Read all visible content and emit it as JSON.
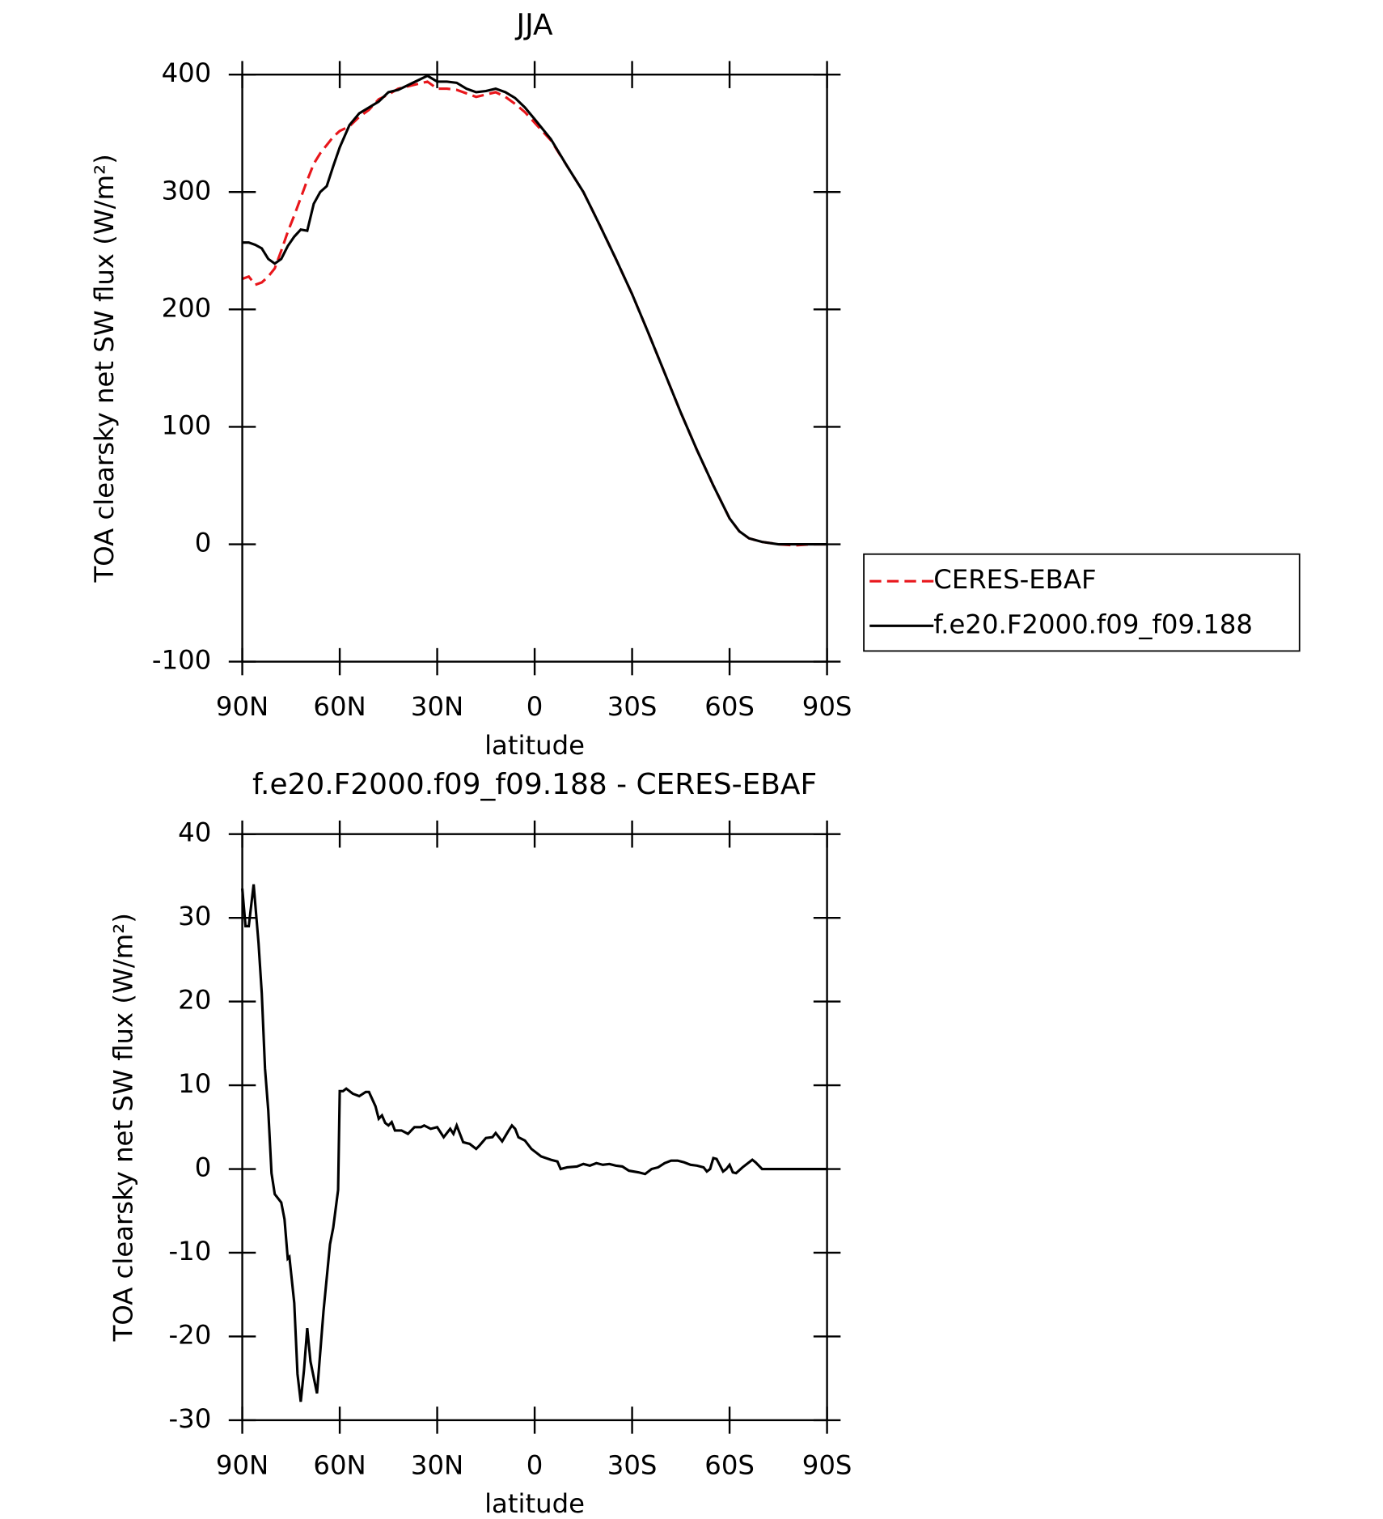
{
  "chart_data": [
    {
      "type": "line",
      "title": "JJA",
      "xlabel": "latitude",
      "ylabel": "TOA clearsky net SW flux (W/m²)",
      "x": [
        90,
        88,
        86,
        84,
        82,
        80,
        78,
        76,
        74,
        72,
        70,
        68,
        66,
        64,
        62,
        60,
        57,
        54,
        51,
        48,
        45,
        42,
        39,
        36,
        33,
        30,
        27,
        24,
        21,
        18,
        15,
        12,
        9,
        6,
        3,
        0,
        -5,
        -10,
        -15,
        -20,
        -25,
        -30,
        -35,
        -40,
        -45,
        -50,
        -55,
        -60,
        -63,
        -66,
        -70,
        -75,
        -80,
        -85,
        -90
      ],
      "series": [
        {
          "name": "CERES-EBAF",
          "color": "#e8161b",
          "dash": true,
          "values": [
            226,
            228,
            221,
            223,
            228,
            235,
            250,
            266,
            280,
            295,
            310,
            324,
            333,
            340,
            347,
            352,
            356,
            364,
            370,
            379,
            383,
            388,
            390,
            392,
            394,
            388,
            388,
            387,
            384,
            381,
            383,
            385,
            381,
            375,
            368,
            359,
            344,
            322,
            300,
            272,
            243,
            213,
            180,
            146,
            112,
            80,
            50,
            22,
            11,
            5,
            2,
            0,
            -1,
            0,
            0
          ]
        },
        {
          "name": "f.e20.F2000.f09_f09.188",
          "color": "#000000",
          "dash": false,
          "values": [
            257,
            257,
            255,
            252,
            243,
            239,
            243,
            254,
            262,
            268,
            267,
            290,
            300,
            305,
            322,
            338,
            357,
            367,
            372,
            377,
            385,
            387,
            391,
            395,
            399,
            394,
            394,
            393,
            388,
            385,
            386,
            388,
            385,
            380,
            372,
            362,
            345,
            322,
            300,
            272,
            243,
            213,
            180,
            146,
            112,
            80,
            50,
            22,
            11,
            5,
            2,
            0,
            0,
            0,
            0
          ]
        }
      ],
      "xlim": [
        90,
        -90
      ],
      "xticks": [
        {
          "value": 90,
          "label": "90N"
        },
        {
          "value": 60,
          "label": "60N"
        },
        {
          "value": 30,
          "label": "30N"
        },
        0,
        {
          "value": -30,
          "label": "30S"
        },
        {
          "value": -60,
          "label": "60S"
        },
        {
          "value": -90,
          "label": "90S"
        }
      ],
      "ylim": [
        -100,
        400
      ],
      "yticks": [
        -100,
        0,
        100,
        200,
        300,
        400
      ],
      "legend": "outside-right"
    },
    {
      "type": "line",
      "title": "f.e20.F2000.f09_f09.188 - CERES-EBAF",
      "xlabel": "latitude",
      "ylabel": "TOA clearsky net SW flux (W/m²)",
      "x": [
        90,
        89,
        88,
        86.5,
        85,
        84,
        83,
        82,
        81,
        80,
        78,
        77,
        76,
        75.5,
        74,
        73,
        72,
        71,
        70,
        69,
        67,
        65,
        63,
        62,
        60.5,
        60,
        59,
        58,
        56,
        54,
        52,
        51,
        49,
        48,
        47,
        46,
        45,
        44,
        43,
        41,
        39,
        37,
        35,
        34,
        32,
        30,
        28,
        26,
        25,
        24,
        22,
        20,
        18,
        17,
        15,
        13,
        12,
        10,
        8,
        7,
        6,
        5,
        3,
        1,
        -2,
        -5,
        -7,
        -8,
        -10,
        -13,
        -15,
        -17,
        -19,
        -21,
        -23,
        -25,
        -27,
        -29,
        -32,
        -34,
        -36,
        -38,
        -40,
        -42,
        -44,
        -46,
        -48,
        -50,
        -52,
        -53,
        -54,
        -55,
        -56,
        -58,
        -59,
        -60,
        -61,
        -62,
        -64,
        -67,
        -68,
        -70,
        -75,
        -80,
        -90
      ],
      "color": "#000000",
      "values": [
        33.5,
        29,
        29,
        34,
        27,
        21,
        12,
        7,
        -0.5,
        -3,
        -4,
        -6,
        -10.7,
        -10.5,
        -16,
        -24.5,
        -27.8,
        -24,
        -19,
        -23,
        -26.8,
        -17,
        -9,
        -7,
        -2.5,
        9.3,
        9.3,
        9.6,
        9,
        8.7,
        9.2,
        9.2,
        7.5,
        6,
        6.4,
        5.5,
        5.2,
        5.6,
        4.6,
        4.6,
        4.2,
        5,
        5,
        5.2,
        4.8,
        5,
        3.8,
        4.8,
        4.2,
        5.2,
        3.2,
        3,
        2.4,
        2.8,
        3.7,
        3.8,
        4.3,
        3.3,
        4.6,
        5.2,
        4.8,
        3.8,
        3.4,
        2.4,
        1.5,
        1.1,
        0.9,
        0,
        0.2,
        0.3,
        0.6,
        0.4,
        0.7,
        0.5,
        0.6,
        0.4,
        0.3,
        -0.2,
        -0.4,
        -0.6,
        0,
        0.2,
        0.7,
        1,
        1,
        0.8,
        0.5,
        0.4,
        0.2,
        -0.3,
        0,
        1.3,
        1.2,
        -0.3,
        0,
        0.5,
        -0.4,
        -0.5,
        0.2,
        1.1,
        0.8,
        0,
        0,
        0,
        0
      ],
      "xlim": [
        90,
        -90
      ],
      "xticks": [
        {
          "value": 90,
          "label": "90N"
        },
        {
          "value": 60,
          "label": "60N"
        },
        {
          "value": 30,
          "label": "30N"
        },
        0,
        {
          "value": -30,
          "label": "30S"
        },
        {
          "value": -60,
          "label": "60S"
        },
        {
          "value": -90,
          "label": "90S"
        }
      ],
      "ylim": [
        -30,
        40
      ],
      "yticks": [
        -30,
        -20,
        -10,
        0,
        10,
        20,
        30,
        40
      ]
    }
  ]
}
